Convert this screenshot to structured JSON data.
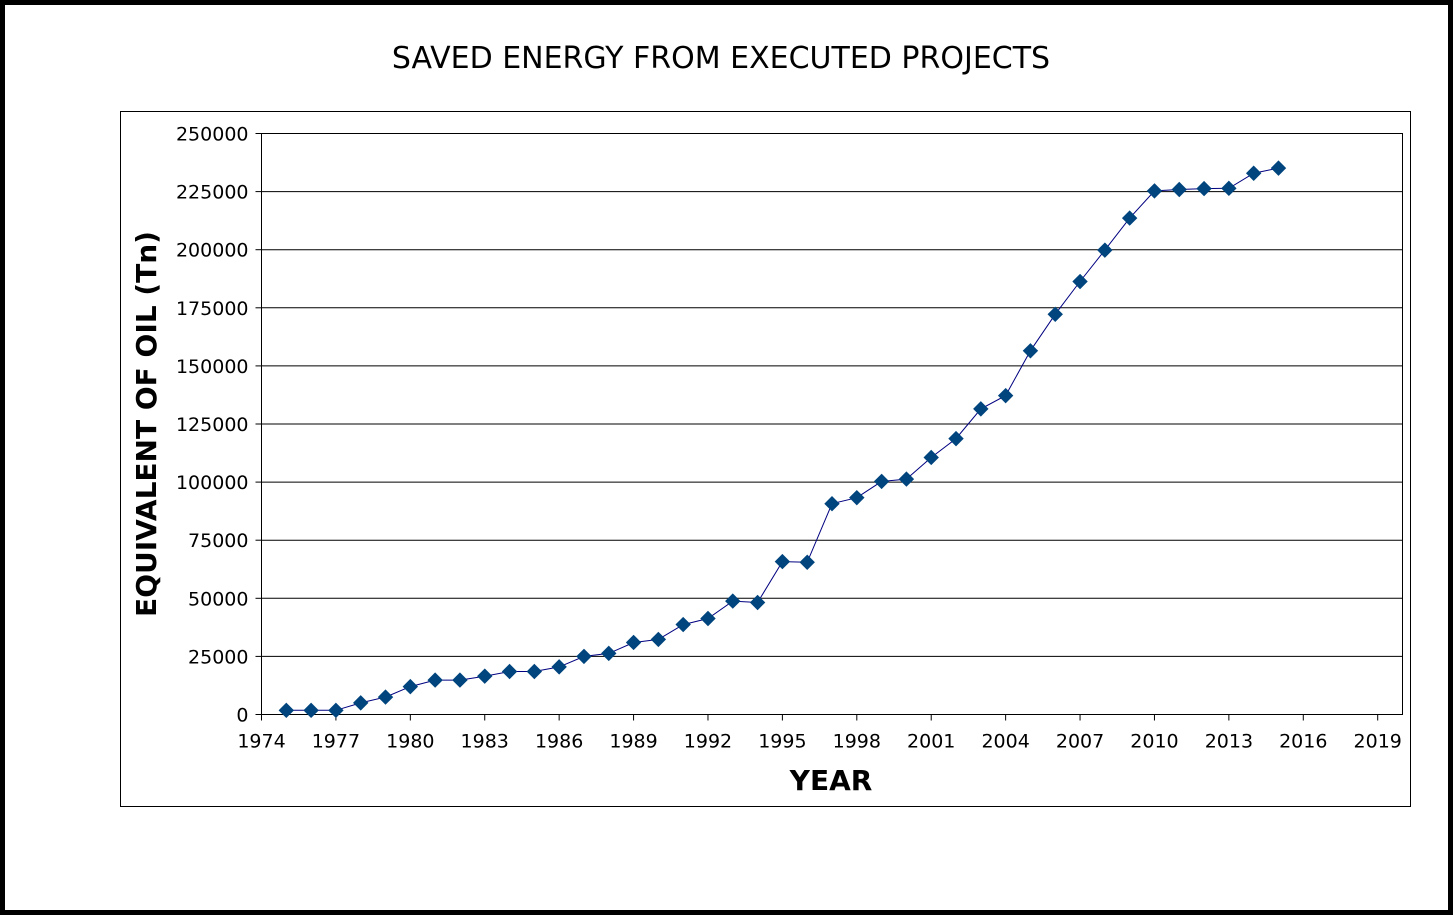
{
  "chart_data": {
    "type": "line",
    "title": "SAVED ENERGY FROM EXECUTED PROJECTS",
    "xlabel": "YEAR",
    "ylabel": "EQUIVALENT OF OIL (Tn)",
    "xlim": [
      1974,
      2020
    ],
    "ylim": [
      0,
      250000
    ],
    "x_ticks": [
      1974,
      1977,
      1980,
      1983,
      1986,
      1989,
      1992,
      1995,
      1998,
      2001,
      2004,
      2007,
      2010,
      2013,
      2016,
      2019
    ],
    "y_ticks": [
      0,
      25000,
      50000,
      75000,
      100000,
      125000,
      150000,
      175000,
      200000,
      225000,
      250000
    ],
    "grid": true,
    "legend": "none",
    "marker": "diamond",
    "series_color": "#00457e",
    "line_color": "#000080",
    "series": [
      {
        "x": [
          1975,
          1976,
          1977,
          1978,
          1979,
          1980,
          1981,
          1982,
          1983,
          1984,
          1985,
          1986,
          1987,
          1988,
          1989,
          1990,
          1991,
          1992,
          1993,
          1994,
          1995,
          1996,
          1997,
          1998,
          1999,
          2000,
          2001,
          2002,
          2003,
          2004,
          2005,
          2006,
          2007,
          2008,
          2009,
          2010,
          2011,
          2012,
          2013,
          2014,
          2015
        ],
        "values": [
          1800,
          1800,
          1800,
          5000,
          7500,
          12000,
          14800,
          14800,
          16500,
          18500,
          18500,
          20500,
          25000,
          26300,
          31000,
          32300,
          38700,
          41300,
          48800,
          48200,
          65800,
          65500,
          90700,
          93300,
          100300,
          101300,
          110600,
          118700,
          131500,
          137200,
          156500,
          172200,
          186300,
          199800,
          213600,
          225300,
          225900,
          226300,
          226400,
          232900,
          235100
        ]
      }
    ]
  }
}
